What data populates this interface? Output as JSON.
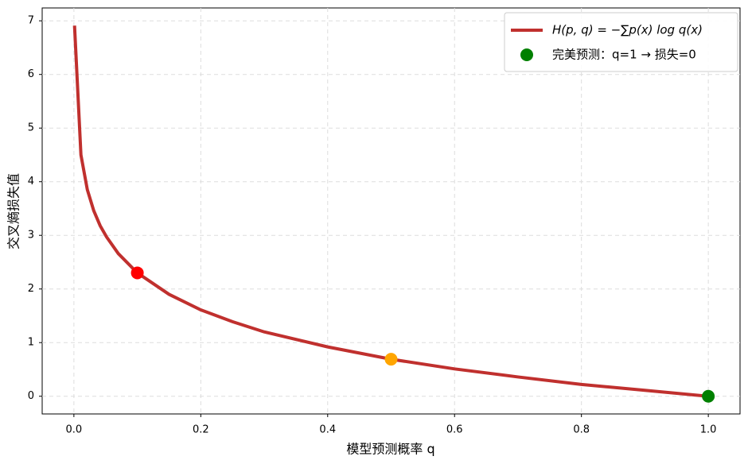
{
  "chart_data": {
    "type": "line",
    "xlabel": "模型预测概率 q",
    "ylabel": "交叉熵损失值",
    "xlim": [
      -0.05,
      1.05
    ],
    "ylim": [
      -0.33,
      7.24
    ],
    "xticks": [
      {
        "value": 0,
        "label": "0.0"
      },
      {
        "value": 0.2,
        "label": "0.2"
      },
      {
        "value": 0.4,
        "label": "0.4"
      },
      {
        "value": 0.6,
        "label": "0.6"
      },
      {
        "value": 0.8,
        "label": "0.8"
      },
      {
        "value": 1,
        "label": "1.0"
      }
    ],
    "yticks": [
      0,
      1,
      2,
      3,
      4,
      5,
      6,
      7
    ],
    "grid": true,
    "legend": "upper right",
    "series": [
      {
        "name": "H(p, q) = −∑p(x) log q(x)",
        "color": "#c0302e",
        "kind": "line",
        "x": [
          0.001,
          0.0111,
          0.0212,
          0.0313,
          0.0414,
          0.0515,
          0.07,
          0.1,
          0.15,
          0.2,
          0.25,
          0.3,
          0.4,
          0.5,
          0.6,
          0.7,
          0.8,
          0.9,
          1.0
        ],
        "values": [
          6.91,
          4.5,
          3.85,
          3.46,
          3.18,
          2.97,
          2.66,
          2.3,
          1.9,
          1.61,
          1.39,
          1.2,
          0.92,
          0.69,
          0.51,
          0.36,
          0.22,
          0.11,
          0
        ]
      },
      {
        "color": "#ff0000",
        "kind": "point",
        "x": [
          0.1
        ],
        "values": [
          2.3
        ]
      },
      {
        "color": "#ffa500",
        "kind": "point",
        "x": [
          0.5
        ],
        "values": [
          0.69
        ]
      },
      {
        "name": "完美预测：q=1 → 损失=0",
        "color": "#008000",
        "kind": "point",
        "x": [
          1.0
        ],
        "values": [
          0
        ]
      }
    ]
  }
}
